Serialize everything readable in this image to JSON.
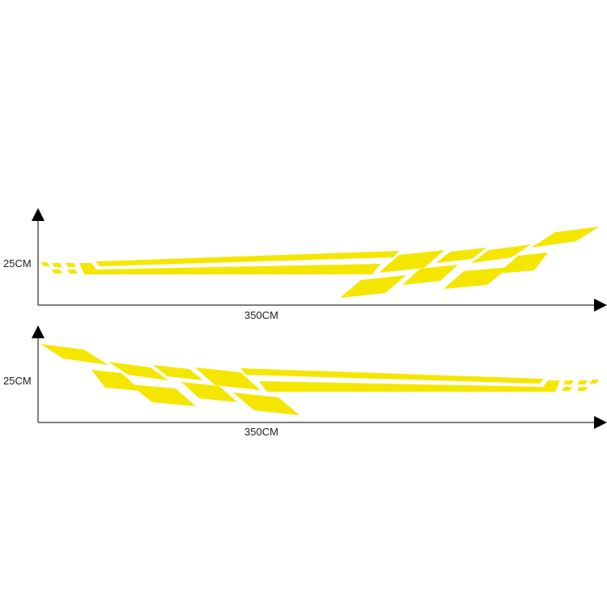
{
  "colors": {
    "stripe": "#f5e600",
    "axis": "#555555",
    "arrow": "#000000"
  },
  "top_diagram": {
    "height_label": "25CM",
    "width_label": "350CM",
    "orientation": "stripes-right"
  },
  "bottom_diagram": {
    "height_label": "25CM",
    "width_label": "350CM",
    "orientation": "stripes-left"
  }
}
